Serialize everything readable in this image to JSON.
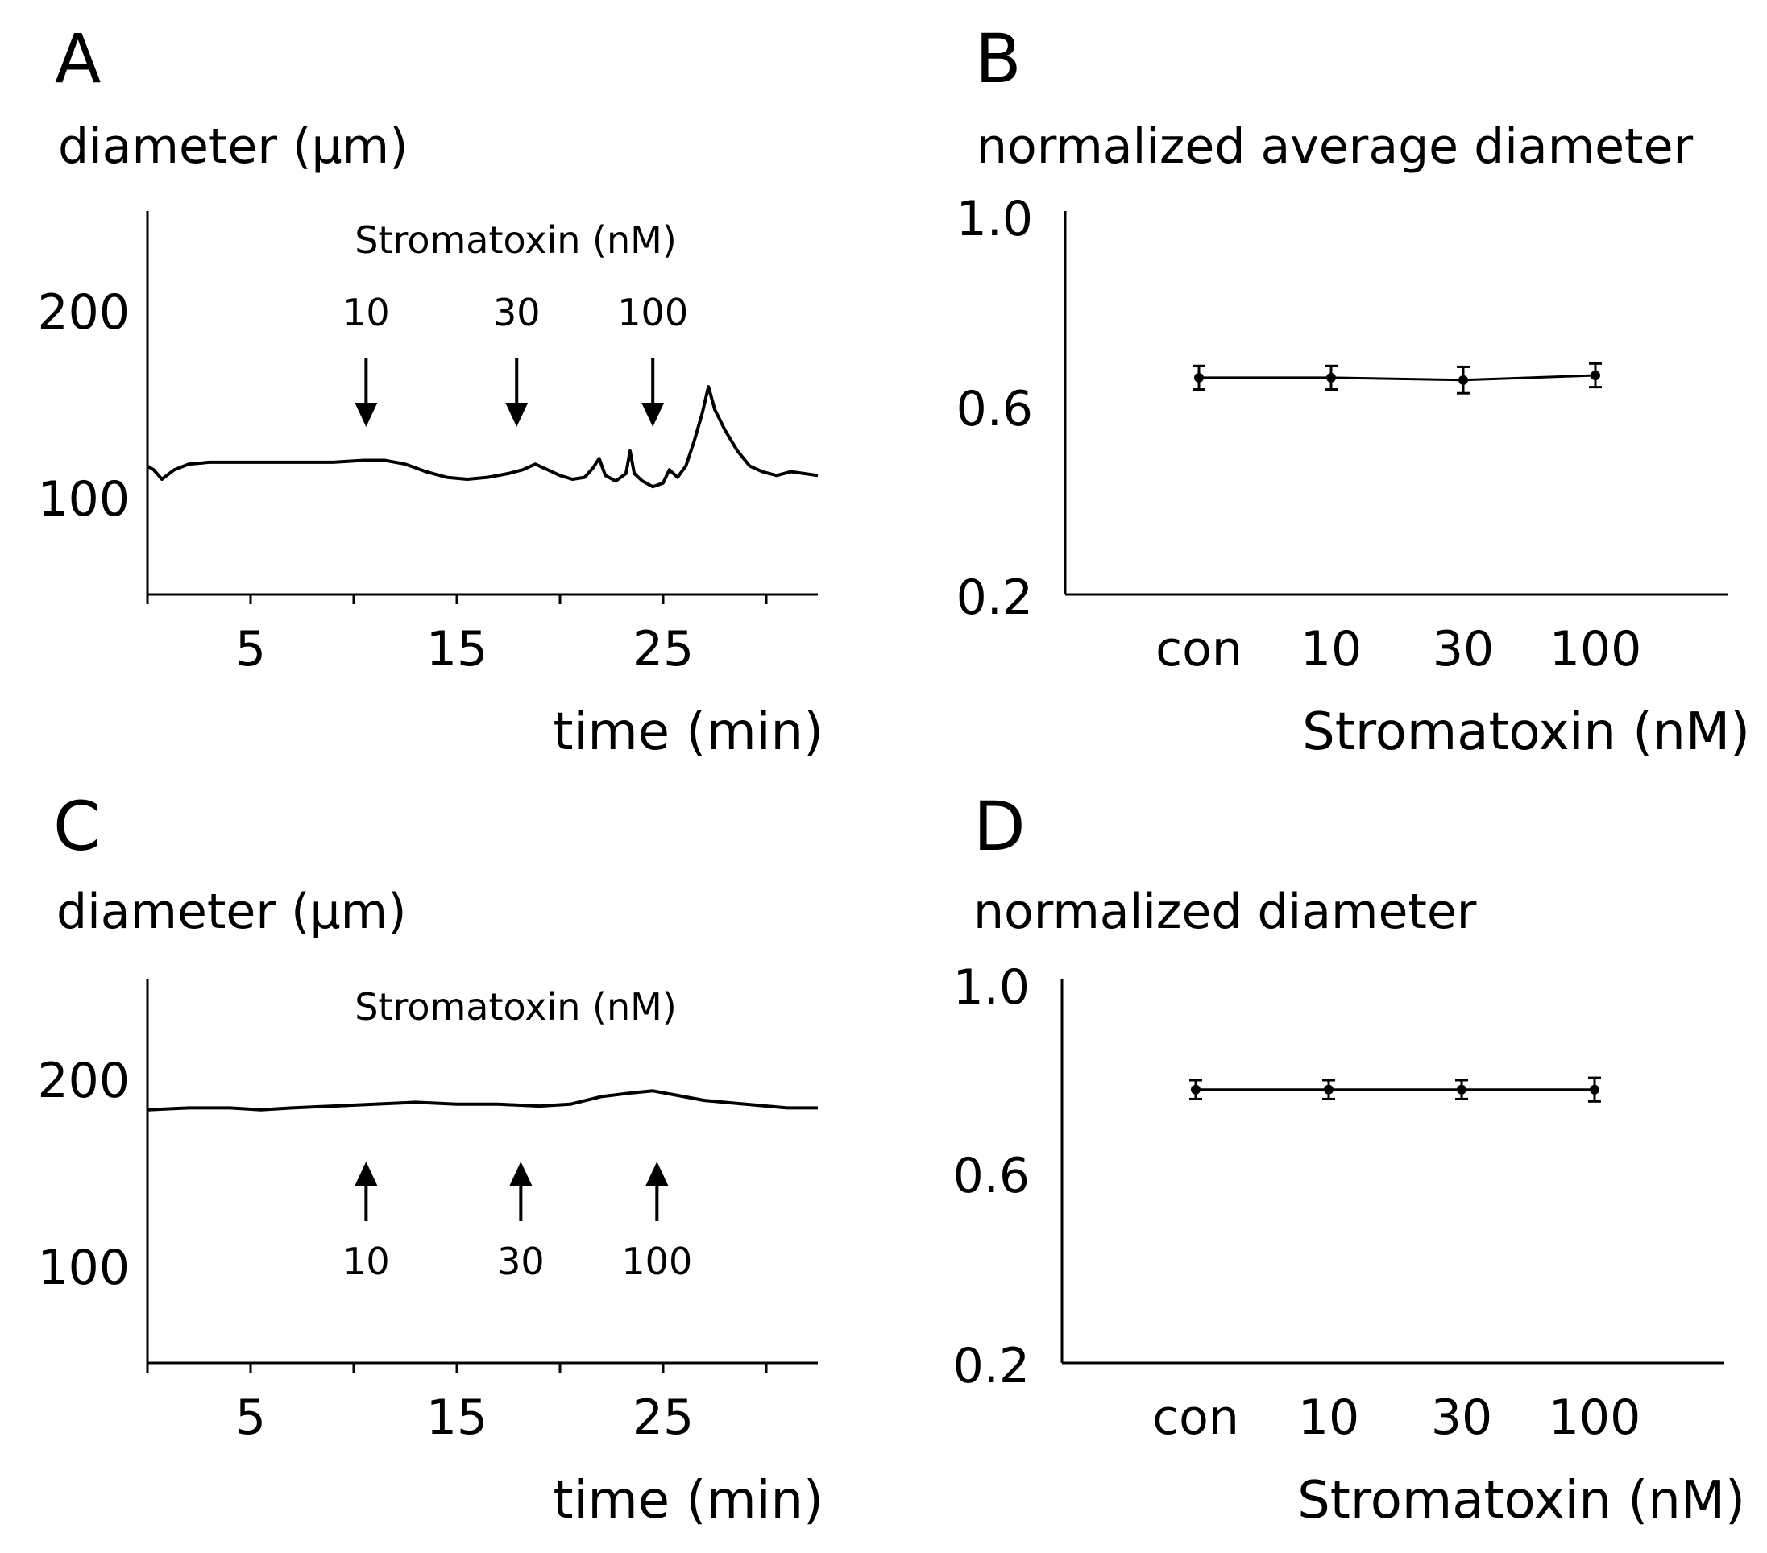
{
  "chart_data": [
    {
      "panel": "A",
      "type": "line",
      "ylabel": "diameter (μm)",
      "xlabel": "time (min)",
      "xticks": [
        "5",
        "15",
        "25"
      ],
      "yticks": [
        "200",
        "100"
      ],
      "xlim": [
        0,
        32.5
      ],
      "ylim": [
        50,
        253
      ],
      "annotation": "Stromatoxin (nM)",
      "arrows": [
        {
          "label": "10",
          "x": 10.6,
          "direction": "down"
        },
        {
          "label": "30",
          "x": 17.9,
          "direction": "down"
        },
        {
          "label": "100",
          "x": 24.5,
          "direction": "down"
        }
      ],
      "series": [
        {
          "points": [
            [
              0,
              118
            ],
            [
              0.3,
              116
            ],
            [
              0.7,
              111
            ],
            [
              1.3,
              116
            ],
            [
              2,
              119
            ],
            [
              3,
              120
            ],
            [
              5,
              120
            ],
            [
              7,
              120
            ],
            [
              9,
              120
            ],
            [
              10.5,
              121
            ],
            [
              11.5,
              121
            ],
            [
              12.5,
              119
            ],
            [
              13.5,
              115
            ],
            [
              14.5,
              112
            ],
            [
              15.5,
              111
            ],
            [
              16.5,
              112
            ],
            [
              17.5,
              114
            ],
            [
              18.2,
              116
            ],
            [
              18.8,
              119
            ],
            [
              19.4,
              116
            ],
            [
              20,
              113
            ],
            [
              20.6,
              111
            ],
            [
              21.2,
              112
            ],
            [
              21.6,
              117
            ],
            [
              21.9,
              122
            ],
            [
              22.2,
              113
            ],
            [
              22.7,
              110
            ],
            [
              23.2,
              114
            ],
            [
              23.4,
              126
            ],
            [
              23.6,
              114
            ],
            [
              24,
              110
            ],
            [
              24.5,
              107
            ],
            [
              25,
              109
            ],
            [
              25.3,
              116
            ],
            [
              25.7,
              112
            ],
            [
              26.1,
              118
            ],
            [
              26.5,
              131
            ],
            [
              26.9,
              146
            ],
            [
              27.2,
              160
            ],
            [
              27.5,
              148
            ],
            [
              28,
              137
            ],
            [
              28.6,
              126
            ],
            [
              29.2,
              118
            ],
            [
              29.8,
              115
            ],
            [
              30.5,
              113
            ],
            [
              31.2,
              115
            ],
            [
              32.5,
              113
            ]
          ]
        }
      ]
    },
    {
      "panel": "B",
      "type": "line",
      "ylabel": "normalized average diameter",
      "xlabel": "Stromatoxin (nM)",
      "categories": [
        "con",
        "10",
        "30",
        "100"
      ],
      "yticks": [
        "1.0",
        "0.6",
        "0.2"
      ],
      "ylim": [
        0.2,
        1.0
      ],
      "series": [
        {
          "values": [
            0.66,
            0.66,
            0.655,
            0.665
          ],
          "errors": [
            0.025,
            0.025,
            0.028,
            0.025
          ]
        }
      ]
    },
    {
      "panel": "C",
      "type": "line",
      "ylabel": "diameter (μm)",
      "xlabel": "time (min)",
      "xticks": [
        "5",
        "15",
        "25"
      ],
      "yticks": [
        "200",
        "100"
      ],
      "xlim": [
        0,
        32.5
      ],
      "ylim": [
        50,
        253
      ],
      "annotation": "Stromatoxin (nM)",
      "arrows": [
        {
          "label": "10",
          "x": 10.6,
          "direction": "up"
        },
        {
          "label": "30",
          "x": 18.1,
          "direction": "up"
        },
        {
          "label": "100",
          "x": 24.7,
          "direction": "up"
        }
      ],
      "series": [
        {
          "points": [
            [
              0,
              184
            ],
            [
              2,
              185
            ],
            [
              4,
              185
            ],
            [
              5.5,
              184
            ],
            [
              7,
              185
            ],
            [
              9,
              186
            ],
            [
              11,
              187
            ],
            [
              13,
              188
            ],
            [
              15,
              187
            ],
            [
              17,
              187
            ],
            [
              19,
              186
            ],
            [
              20.5,
              187
            ],
            [
              22,
              191
            ],
            [
              23.5,
              193
            ],
            [
              24.5,
              194
            ],
            [
              25.5,
              192
            ],
            [
              27,
              189
            ],
            [
              29,
              187
            ],
            [
              31,
              185
            ],
            [
              32.5,
              185
            ]
          ]
        }
      ]
    },
    {
      "panel": "D",
      "type": "line",
      "ylabel": "normalized diameter",
      "xlabel": "Stromatoxin (nM)",
      "categories": [
        "con",
        "10",
        "30",
        "100"
      ],
      "yticks": [
        "1.0",
        "0.6",
        "0.2"
      ],
      "ylim": [
        0.2,
        1.0
      ],
      "series": [
        {
          "values": [
            0.78,
            0.78,
            0.78,
            0.78
          ],
          "errors": [
            0.02,
            0.02,
            0.02,
            0.025
          ]
        }
      ]
    }
  ]
}
